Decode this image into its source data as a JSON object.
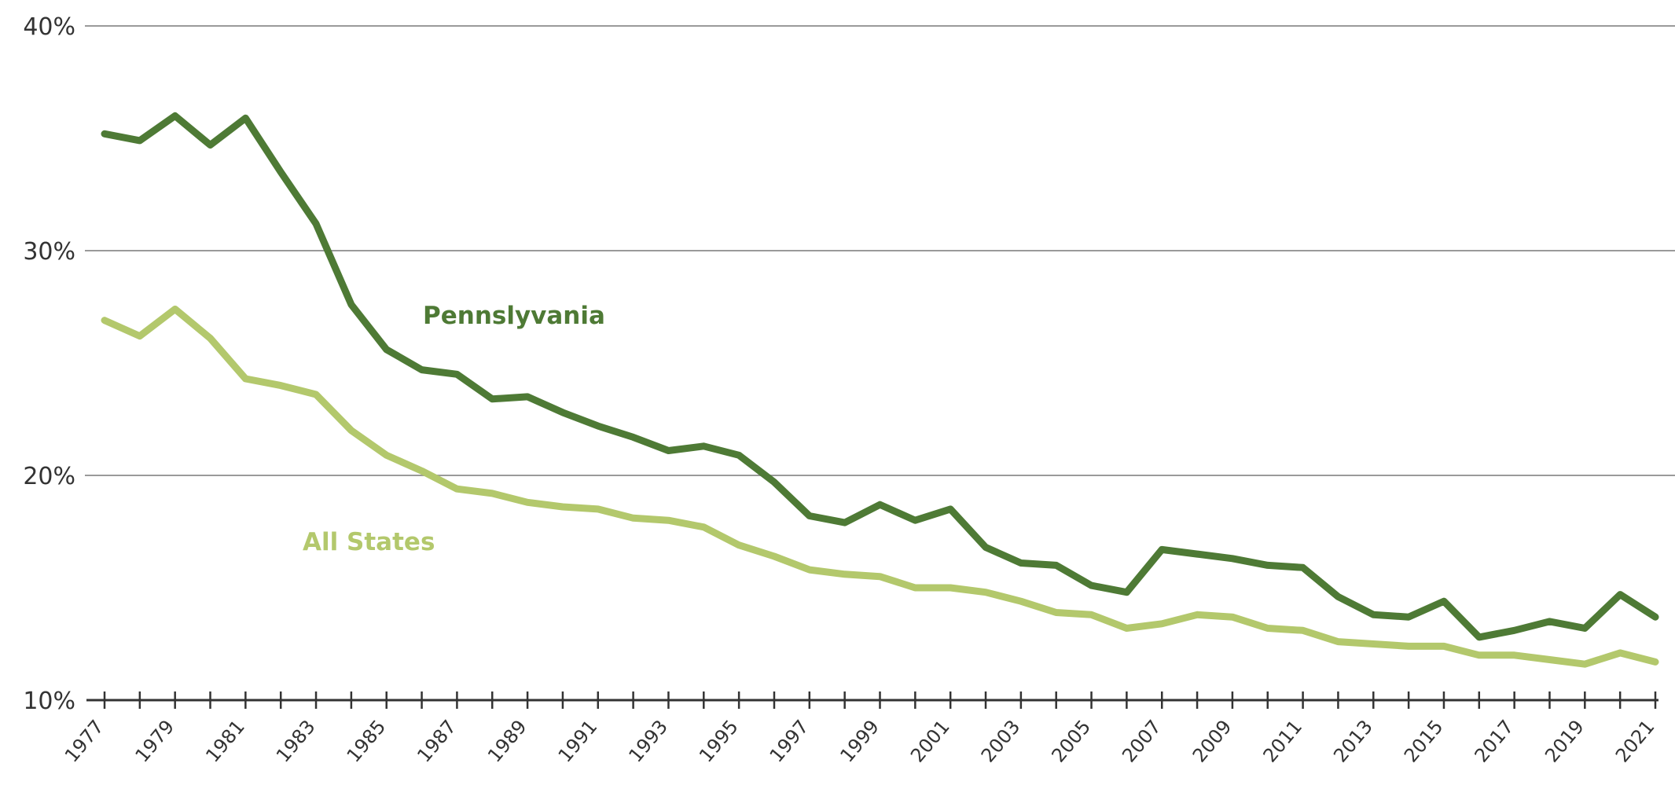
{
  "chart_data": {
    "type": "line",
    "title": "",
    "xlabel": "",
    "ylabel": "",
    "x": [
      1977,
      1978,
      1979,
      1980,
      1981,
      1982,
      1983,
      1984,
      1985,
      1986,
      1987,
      1988,
      1989,
      1990,
      1991,
      1992,
      1993,
      1994,
      1995,
      1996,
      1997,
      1998,
      1999,
      2000,
      2001,
      2002,
      2003,
      2004,
      2005,
      2006,
      2007,
      2008,
      2009,
      2010,
      2011,
      2012,
      2013,
      2014,
      2015,
      2016,
      2017,
      2018,
      2019,
      2020,
      2021
    ],
    "x_tick_labels": [
      "1977",
      "1979",
      "1981",
      "1983",
      "1985",
      "1987",
      "1989",
      "1991",
      "1993",
      "1995",
      "1997",
      "1999",
      "2001",
      "2003",
      "2005",
      "2007",
      "2009",
      "2011",
      "2013",
      "2015",
      "2017",
      "2019",
      "2021"
    ],
    "ylim": [
      10,
      40
    ],
    "y_ticks": [
      10,
      20,
      30,
      40
    ],
    "y_tick_labels": [
      "10%",
      "20%",
      "30%",
      "40%"
    ],
    "grid": true,
    "series": [
      {
        "name": "Pennslyvania",
        "color": "#4e7a35",
        "values": [
          35.2,
          34.9,
          36.0,
          34.7,
          35.9,
          33.5,
          31.2,
          27.6,
          25.6,
          24.7,
          24.5,
          23.4,
          23.5,
          22.8,
          22.2,
          21.7,
          21.1,
          21.3,
          20.9,
          19.7,
          18.2,
          17.9,
          18.7,
          18.0,
          18.5,
          16.8,
          16.1,
          16.0,
          15.1,
          14.8,
          16.7,
          16.5,
          16.3,
          16.0,
          15.9,
          14.6,
          13.8,
          13.7,
          14.4,
          12.8,
          13.1,
          13.5,
          13.2,
          14.7,
          13.7
        ]
      },
      {
        "name": "All States",
        "color": "#b3c86c",
        "values": [
          26.9,
          26.2,
          27.4,
          26.1,
          24.3,
          24.0,
          23.6,
          22.0,
          20.9,
          20.2,
          19.4,
          19.2,
          18.8,
          18.6,
          18.5,
          18.1,
          18.0,
          17.7,
          16.9,
          16.4,
          15.8,
          15.6,
          15.5,
          15.0,
          15.0,
          14.8,
          14.4,
          13.9,
          13.8,
          13.2,
          13.4,
          13.8,
          13.7,
          13.2,
          13.1,
          12.6,
          12.5,
          12.4,
          12.4,
          12.0,
          12.0,
          11.8,
          11.6,
          12.1,
          11.7
        ]
      }
    ]
  }
}
